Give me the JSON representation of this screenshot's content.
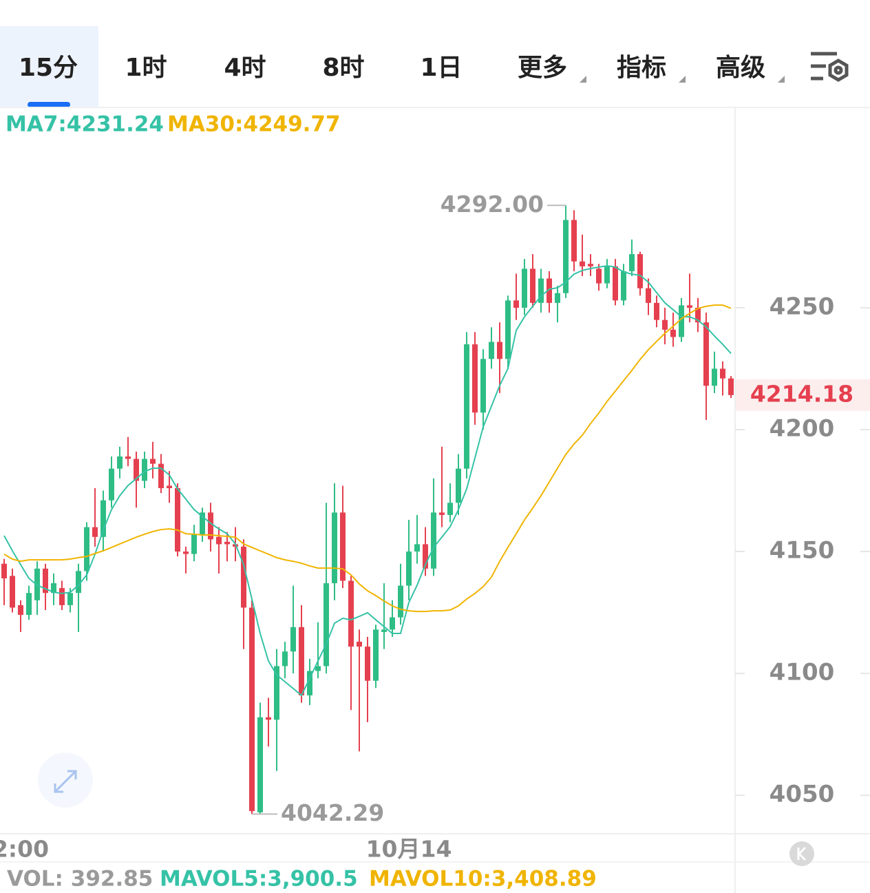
{
  "tabs": [
    "15分",
    "1时",
    "4时",
    "8时",
    "1日",
    "更多",
    "指标",
    "高级"
  ],
  "chart_data": {
    "type": "candlestick",
    "categories": [
      null,
      null,
      "2:00",
      null,
      null,
      null,
      null,
      null,
      null,
      null,
      null,
      null,
      null,
      null,
      null,
      null,
      null,
      null,
      null,
      null,
      null,
      null,
      null,
      null,
      null,
      null,
      null,
      null,
      null,
      null,
      null,
      null,
      null,
      null,
      null,
      null,
      null,
      null,
      null,
      null,
      null,
      null,
      null,
      null,
      null,
      null,
      null,
      null,
      null,
      "10月14",
      null,
      null,
      null,
      null,
      null,
      null,
      null,
      null,
      null,
      null,
      null,
      null,
      null,
      null,
      null,
      null,
      null,
      null,
      null,
      null,
      null,
      null,
      null,
      null,
      null,
      null,
      null,
      null,
      null,
      null,
      null,
      null,
      null,
      null,
      null,
      null,
      null,
      null,
      null
    ],
    "open": [
      4145,
      4140,
      4128,
      4124,
      4130,
      4143,
      4133,
      4135,
      4128,
      4133,
      4142,
      4160,
      4156,
      4171,
      4184,
      4189,
      4188,
      4179,
      4188,
      4186,
      4177,
      4176,
      4150,
      4149,
      4157,
      4166,
      4156,
      4154,
      4153,
      4152,
      4127,
      4043,
      4082,
      4081,
      4103,
      4109,
      4119,
      4091,
      4101,
      4103,
      4137,
      4166,
      4138,
      4113,
      4111,
      4097,
      4117,
      4118,
      4123,
      4136,
      4150,
      4153,
      4143,
      4166,
      4165,
      4170,
      4184,
      4235,
      4207,
      4229,
      4236,
      4229,
      4253,
      4250,
      4266,
      4252,
      4262,
      4252,
      4256,
      4286,
      4269,
      4268,
      4266,
      4260,
      4267,
      4253,
      4265,
      4272,
      4258,
      4252,
      4245,
      4241,
      4238,
      4251,
      4250,
      4244,
      4218,
      4225,
      4221
    ],
    "high": [
      4147,
      4143,
      4130,
      4136,
      4146,
      4145,
      4141,
      4138,
      4135,
      4145,
      4162,
      4176,
      4175,
      4189,
      4193,
      4197,
      4191,
      4191,
      4195,
      4190,
      4183,
      4178,
      4152,
      4161,
      4168,
      4170,
      4160,
      4158,
      4160,
      4155,
      4130,
      4088,
      4090,
      4110,
      4113,
      4136,
      4128,
      4106,
      4121,
      4170,
      4178,
      4177,
      4140,
      4118,
      4115,
      4120,
      4137,
      4130,
      4145,
      4163,
      4165,
      4160,
      4180,
      4193,
      4178,
      4190,
      4240,
      4240,
      4233,
      4242,
      4244,
      4255,
      4264,
      4270,
      4272,
      4266,
      4265,
      4259,
      4292,
      4290,
      4280,
      4272,
      4268,
      4270,
      4270,
      4268,
      4278,
      4273,
      4262,
      4255,
      4250,
      4248,
      4254,
      4264,
      4254,
      4248,
      4232,
      4228,
      4222
    ],
    "low": [
      4128,
      4125,
      4117,
      4122,
      4124,
      4126,
      4128,
      4126,
      4125,
      4117,
      4138,
      4152,
      4150,
      4168,
      4180,
      4185,
      4168,
      4176,
      4180,
      4174,
      4170,
      4148,
      4141,
      4146,
      4154,
      4150,
      4141,
      4146,
      4146,
      4110,
      4042.29,
      4042.5,
      4070,
      4060,
      4098,
      4100,
      4088,
      4087,
      4098,
      4100,
      4130,
      4135,
      4085,
      4068,
      4080,
      4094,
      4110,
      4115,
      4120,
      4130,
      4145,
      4140,
      4140,
      4160,
      4162,
      4165,
      4180,
      4202,
      4200,
      4225,
      4215,
      4225,
      4245,
      4247,
      4250,
      4248,
      4248,
      4244,
      4254,
      4265,
      4263,
      4263,
      4257,
      4258,
      4251,
      4251,
      4263,
      4255,
      4247,
      4242,
      4235,
      4234,
      4236,
      4244,
      4240,
      4204,
      4215,
      4214,
      4213
    ],
    "close": [
      4139,
      4127,
      4124,
      4133,
      4143,
      4133,
      4137,
      4128,
      4133,
      4142,
      4160,
      4156,
      4171,
      4184,
      4189,
      4188,
      4179,
      4188,
      4186,
      4176,
      4176,
      4150,
      4149,
      4157,
      4166,
      4155,
      4153,
      4153,
      4152,
      4127,
      4043.5,
      4082,
      4081,
      4103,
      4109,
      4119,
      4091,
      4101,
      4103,
      4137,
      4166,
      4138,
      4111,
      4111,
      4097,
      4118,
      4118,
      4123,
      4136,
      4150,
      4153,
      4143,
      4166,
      4165,
      4170,
      4184,
      4235,
      4207,
      4229,
      4236,
      4229,
      4253,
      4250,
      4266,
      4252,
      4262,
      4252,
      4256,
      4286,
      4269,
      4267,
      4267,
      4260,
      4267,
      4253,
      4265,
      4272,
      4258,
      4252,
      4245,
      4241,
      4238,
      4251,
      4250,
      4244,
      4218,
      4225,
      4221,
      4214.18
    ],
    "up_color": "#2ebd85",
    "down_color": "#e5404f",
    "series": [
      {
        "name": "MA7:4231.24",
        "color": "#35c2a6",
        "values": [
          4156.5,
          4150.3,
          4144.6,
          4139.0,
          4136.2,
          4134.7,
          4133.3,
          4132.8,
          4133.3,
          4136.2,
          4140.4,
          4148.9,
          4158.8,
          4167.2,
          4172.9,
          4177.1,
          4179.9,
          4182.8,
          4184.2,
          4184.2,
          4181.4,
          4175.7,
          4171.5,
          4167.2,
          4164.4,
          4161.6,
          4159.3,
          4157.3,
          4153.1,
          4144.6,
          4130.5,
          4116.4,
          4105.1,
          4099.4,
          4096.6,
          4093.8,
          4091.0,
          4098.0,
          4105.1,
          4112.1,
          4120.6,
          4122.6,
          4122.0,
          4123.4,
          4124.9,
          4122.0,
          4119.2,
          4116.4,
          4116.4,
          4129.1,
          4136.2,
          4144.6,
          4151.7,
          4155.9,
          4160.2,
          4167.2,
          4175.7,
          4188.4,
          4201.1,
          4209.6,
          4218.1,
          4225.1,
          4240.7,
          4246.3,
          4250.6,
          4254.8,
          4257.6,
          4258.2,
          4260.5,
          4263.8,
          4265.3,
          4266.1,
          4266.7,
          4267.2,
          4266.7,
          4264.7,
          4263.8,
          4263.3,
          4260.5,
          4256.2,
          4252.0,
          4249.2,
          4246.3,
          4246.3,
          4244.9,
          4242.1,
          4238.4,
          4235.0,
          4231.24
        ]
      },
      {
        "name": "MA30:4249.77",
        "color": "#f0b400",
        "values": [
          4148.9,
          4146.9,
          4146.0,
          4146.6,
          4146.6,
          4146.6,
          4146.6,
          4146.6,
          4146.9,
          4147.5,
          4148.0,
          4149.2,
          4150.3,
          4151.7,
          4153.1,
          4154.5,
          4155.9,
          4157.1,
          4158.2,
          4159.0,
          4159.3,
          4158.8,
          4157.3,
          4157.1,
          4156.8,
          4156.8,
          4156.5,
          4156.2,
          4155.9,
          4153.1,
          4151.7,
          4150.3,
          4148.9,
          4147.5,
          4146.6,
          4146.0,
          4145.2,
          4144.1,
          4143.2,
          4143.2,
          4143.2,
          4142.9,
          4140.4,
          4136.7,
          4133.9,
          4131.9,
          4129.7,
          4127.7,
          4126.3,
          4125.7,
          4125.4,
          4125.4,
          4125.7,
          4125.7,
          4126.0,
          4127.7,
          4130.5,
          4132.8,
          4135.6,
          4139.5,
          4146.0,
          4151.7,
          4157.3,
          4163.0,
          4167.8,
          4172.9,
          4178.5,
          4184.2,
          4189.8,
          4194.1,
          4197.7,
          4202.5,
          4206.8,
          4211.6,
          4215.8,
          4220.1,
          4224.3,
          4228.8,
          4232.8,
          4236.2,
          4239.5,
          4242.4,
          4245.5,
          4247.7,
          4249.7,
          4250.6,
          4251.1,
          4251.1,
          4249.77
        ]
      }
    ],
    "ylim": [
      4034.5,
      4331.9
    ],
    "yticks": [
      4050,
      4100,
      4150,
      4200,
      4250
    ],
    "max_label": "4292.00",
    "min_label": "4042.29",
    "last_label": "4214.18",
    "volume": [
      {
        "text": "VOL: 392.85",
        "color": "#9a9a9a"
      },
      {
        "text": "MAVOL5:3,900.5",
        "color": "#35c2a6"
      },
      {
        "text": "MAVOL10:3,408.89",
        "color": "#f0b400"
      }
    ]
  }
}
